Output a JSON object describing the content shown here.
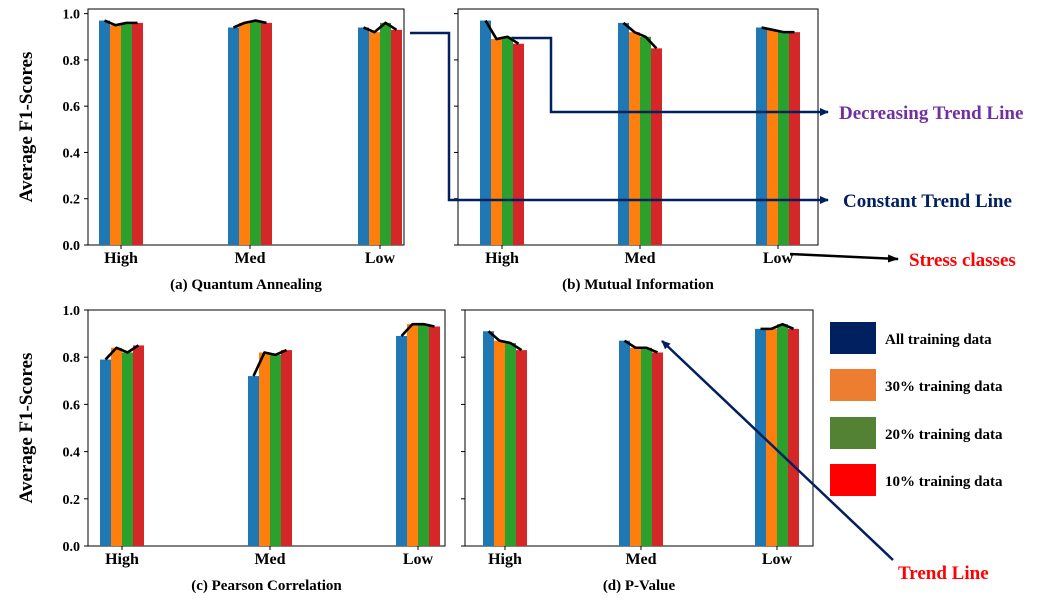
{
  "chart_data": [
    {
      "type": "bar",
      "caption": "(a) Quantum Annealing",
      "ylabel": "Average F1-Scores",
      "categories": [
        "High",
        "Med",
        "Low"
      ],
      "yticks": [
        "0.0",
        "0.2",
        "0.4",
        "0.6",
        "0.8",
        "1.0"
      ],
      "ylim": [
        0,
        1.02
      ],
      "series": [
        {
          "name": "All training data",
          "values": [
            0.97,
            0.94,
            0.94
          ]
        },
        {
          "name": "30% training data",
          "values": [
            0.95,
            0.96,
            0.92
          ]
        },
        {
          "name": "20% training data",
          "values": [
            0.96,
            0.97,
            0.96
          ]
        },
        {
          "name": "10% training data",
          "values": [
            0.96,
            0.96,
            0.93
          ]
        }
      ]
    },
    {
      "type": "bar",
      "caption": "(b) Mutual Information",
      "ylabel": "",
      "categories": [
        "High",
        "Med",
        "Low"
      ],
      "yticks": [],
      "ylim": [
        0,
        1.02
      ],
      "series": [
        {
          "name": "All training data",
          "values": [
            0.97,
            0.96,
            0.94
          ]
        },
        {
          "name": "30% training data",
          "values": [
            0.89,
            0.92,
            0.93
          ]
        },
        {
          "name": "20% training data",
          "values": [
            0.9,
            0.9,
            0.92
          ]
        },
        {
          "name": "10% training data",
          "values": [
            0.87,
            0.85,
            0.92
          ]
        }
      ]
    },
    {
      "type": "bar",
      "caption": "(c) Pearson Correlation",
      "ylabel": "Average F1-Scores",
      "categories": [
        "High",
        "Med",
        "Low"
      ],
      "yticks": [
        "0.0",
        "0.2",
        "0.4",
        "0.6",
        "0.8",
        "1.0"
      ],
      "ylim": [
        0,
        1.0
      ],
      "series": [
        {
          "name": "All training data",
          "values": [
            0.79,
            0.72,
            0.89
          ]
        },
        {
          "name": "30% training data",
          "values": [
            0.84,
            0.82,
            0.94
          ]
        },
        {
          "name": "20% training data",
          "values": [
            0.82,
            0.81,
            0.94
          ]
        },
        {
          "name": "10% training data",
          "values": [
            0.85,
            0.83,
            0.93
          ]
        }
      ]
    },
    {
      "type": "bar",
      "caption": "(d) P-Value",
      "ylabel": "",
      "categories": [
        "High",
        "Med",
        "Low"
      ],
      "yticks": [],
      "ylim": [
        0,
        1.0
      ],
      "series": [
        {
          "name": "All training data",
          "values": [
            0.91,
            0.87,
            0.92
          ]
        },
        {
          "name": "30% training data",
          "values": [
            0.87,
            0.84,
            0.92
          ]
        },
        {
          "name": "20% training data",
          "values": [
            0.86,
            0.84,
            0.94
          ]
        },
        {
          "name": "10% training data",
          "values": [
            0.83,
            0.82,
            0.92
          ]
        }
      ]
    }
  ],
  "bar_colors": [
    "#1f77b4",
    "#ff7f0e",
    "#2ca02c",
    "#d62728"
  ],
  "trend_line_color": "#000000",
  "annotations": {
    "decreasing": {
      "text": "Decreasing Trend Line",
      "color": "#7030a0"
    },
    "constant": {
      "text": "Constant Trend Line",
      "color": "#002060"
    },
    "stress": {
      "text": "Stress classes",
      "color": "#ff0000"
    },
    "trend": {
      "text": "Trend Line",
      "color": "#ff0000"
    },
    "arrow_color": "#002060"
  },
  "legend": {
    "items": [
      {
        "label": "All training data",
        "color": "#002060"
      },
      {
        "label": "30% training data",
        "color": "#ed7d31"
      },
      {
        "label": "20% training data",
        "color": "#548235"
      },
      {
        "label": "10% training data",
        "color": "#ff0000"
      }
    ]
  }
}
